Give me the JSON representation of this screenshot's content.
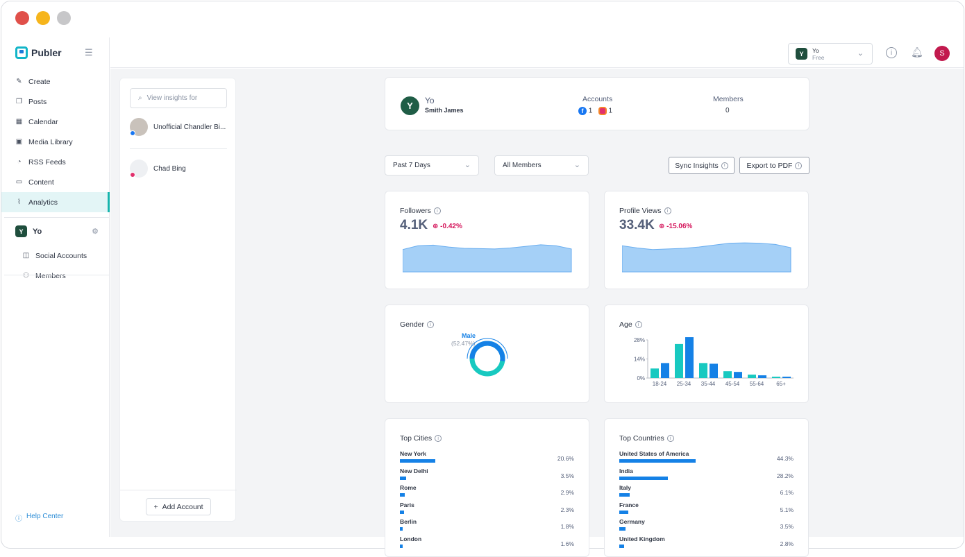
{
  "sidebar": {
    "brand": "Publer",
    "nav": [
      {
        "label": "Create",
        "icon": "edit-icon"
      },
      {
        "label": "Posts",
        "icon": "posts-icon"
      },
      {
        "label": "Calendar",
        "icon": "calendar-icon"
      },
      {
        "label": "Media Library",
        "icon": "media-icon"
      },
      {
        "label": "RSS Feeds",
        "icon": "rss-icon"
      },
      {
        "label": "Content",
        "icon": "content-icon"
      },
      {
        "label": "Analytics",
        "icon": "analytics-icon",
        "active": true
      }
    ],
    "workspace": {
      "badge": "Y",
      "name": "Yo"
    },
    "subnav": [
      {
        "label": "Social Accounts",
        "icon": "social-accounts-icon"
      },
      {
        "label": "Members",
        "icon": "members-icon"
      }
    ],
    "help": "Help Center"
  },
  "topbar": {
    "workspace_badge": "Y",
    "workspace_name": "Yo",
    "plan": "Free",
    "avatar_initial": "S"
  },
  "accounts_panel": {
    "search_placeholder": "View insights for",
    "accounts": [
      {
        "name": "Unofficial Chandler Bi...",
        "network": "facebook"
      },
      {
        "name": "Chad Bing",
        "network": "instagram"
      }
    ],
    "add_label": "Add Account"
  },
  "summary": {
    "badge": "Y",
    "workspace": "Yo",
    "user": "Smith James",
    "accounts_label": "Accounts",
    "fb_count": "1",
    "ig_count": "1",
    "members_label": "Members",
    "members_count": "0"
  },
  "filters": {
    "period": "Past 7 Days",
    "members": "All Members",
    "sync_label": "Sync Insights",
    "export_label": "Export to PDF"
  },
  "followers": {
    "title": "Followers",
    "value": "4.1K",
    "change": "-0.42%",
    "trend": [
      0.7,
      0.82,
      0.84,
      0.78,
      0.74,
      0.73,
      0.72,
      0.75,
      0.8,
      0.85,
      0.82,
      0.72
    ]
  },
  "profile_views": {
    "title": "Profile Views",
    "value": "33.4K",
    "change": "-15.06%",
    "trend": [
      0.82,
      0.75,
      0.7,
      0.72,
      0.74,
      0.78,
      0.84,
      0.9,
      0.91,
      0.9,
      0.86,
      0.76
    ]
  },
  "gender": {
    "title": "Gender",
    "label": "Male",
    "pct": "(52.47%)",
    "male": 52.47
  },
  "chart_data": {
    "type": "bar",
    "title": "Age",
    "categories": [
      "18-24",
      "25-34",
      "35-44",
      "45-54",
      "55-64",
      "65+"
    ],
    "series": [
      {
        "values": [
          7,
          25,
          11,
          5,
          2.5,
          1
        ]
      },
      {
        "values": [
          11,
          30,
          10.5,
          4.5,
          2,
          1
        ]
      }
    ],
    "ylim": [
      0,
      28
    ],
    "yticks": [
      "28%",
      "14%",
      "0%"
    ],
    "colors": [
      "#18c9c0",
      "#1581e6"
    ]
  },
  "top_cities": {
    "title": "Top Cities",
    "rows": [
      {
        "name": "New York",
        "pct": "20.6%",
        "value": 20.6
      },
      {
        "name": "New Delhi",
        "pct": "3.5%",
        "value": 3.5
      },
      {
        "name": "Rome",
        "pct": "2.9%",
        "value": 2.9
      },
      {
        "name": "Paris",
        "pct": "2.3%",
        "value": 2.3
      },
      {
        "name": "Berlin",
        "pct": "1.8%",
        "value": 1.8
      },
      {
        "name": "London",
        "pct": "1.6%",
        "value": 1.6
      }
    ]
  },
  "top_countries": {
    "title": "Top Countries",
    "rows": [
      {
        "name": "United States of America",
        "pct": "44.3%",
        "value": 44.3
      },
      {
        "name": "India",
        "pct": "28.2%",
        "value": 28.2
      },
      {
        "name": "Italy",
        "pct": "6.1%",
        "value": 6.1
      },
      {
        "name": "France",
        "pct": "5.1%",
        "value": 5.1
      },
      {
        "name": "Germany",
        "pct": "3.5%",
        "value": 3.5
      },
      {
        "name": "United Kingdom",
        "pct": "2.8%",
        "value": 2.8
      }
    ]
  }
}
